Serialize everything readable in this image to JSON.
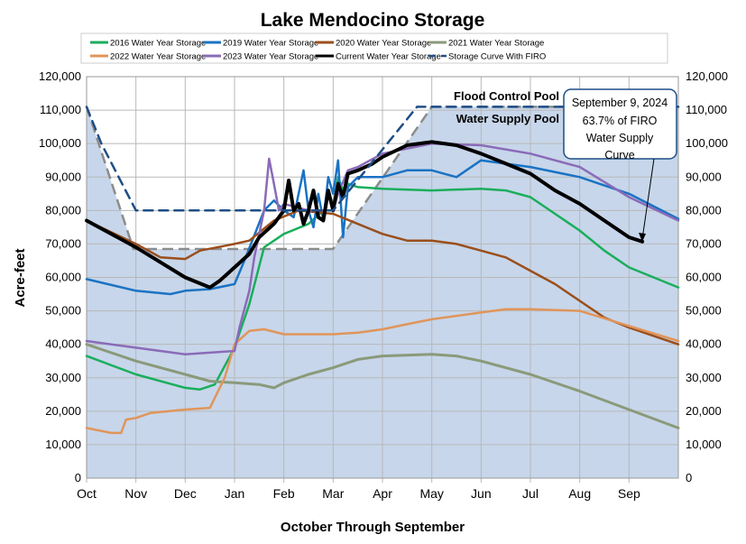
{
  "chart_data": {
    "type": "line",
    "title": "Lake Mendocino Storage",
    "xlabel": "October Through September",
    "ylabel": "Acre-feet",
    "ylim": [
      0,
      120000
    ],
    "xlim_months": [
      0,
      12
    ],
    "x_ticks": [
      "Oct",
      "Nov",
      "Dec",
      "Jan",
      "Feb",
      "Mar",
      "Apr",
      "May",
      "Jun",
      "Jul",
      "Aug",
      "Sep"
    ],
    "y_ticks": [
      0,
      10000,
      20000,
      30000,
      40000,
      50000,
      60000,
      70000,
      80000,
      90000,
      100000,
      110000,
      120000
    ],
    "y_tick_labels": [
      "0",
      "10,000",
      "20,000",
      "30,000",
      "40,000",
      "50,000",
      "60,000",
      "70,000",
      "80,000",
      "90,000",
      "100,000",
      "110,000",
      "120,000"
    ],
    "grid": true,
    "legend_position": "top",
    "x_unit": "months since Oct 1",
    "series": [
      {
        "name": "2016 Water Year Storage",
        "color": "#1aae5c",
        "width": 2.5,
        "points": [
          [
            0,
            36.5
          ],
          [
            1,
            31
          ],
          [
            2,
            27
          ],
          [
            2.3,
            26.5
          ],
          [
            2.6,
            28
          ],
          [
            3,
            39
          ],
          [
            3.3,
            52
          ],
          [
            3.6,
            69
          ],
          [
            4,
            73
          ],
          [
            4.5,
            76
          ],
          [
            4.8,
            80
          ],
          [
            5,
            80
          ],
          [
            5.1,
            90
          ],
          [
            5.2,
            86
          ],
          [
            5.3,
            88
          ],
          [
            5.5,
            87
          ],
          [
            6,
            86.5
          ],
          [
            7,
            86
          ],
          [
            8,
            86.5
          ],
          [
            8.5,
            86
          ],
          [
            9,
            84
          ],
          [
            9.5,
            79
          ],
          [
            10,
            74
          ],
          [
            10.5,
            68
          ],
          [
            11,
            63
          ],
          [
            12,
            57
          ]
        ]
      },
      {
        "name": "2019 Water Year Storage",
        "color": "#1a73c4",
        "width": 2.5,
        "points": [
          [
            0,
            59.5
          ],
          [
            1,
            56
          ],
          [
            1.7,
            55
          ],
          [
            2,
            56
          ],
          [
            2.5,
            56.5
          ],
          [
            3,
            58
          ],
          [
            3.2,
            65
          ],
          [
            3.6,
            80
          ],
          [
            3.8,
            83
          ],
          [
            4,
            80
          ],
          [
            4.2,
            78
          ],
          [
            4.4,
            92
          ],
          [
            4.5,
            80
          ],
          [
            4.6,
            75
          ],
          [
            4.7,
            85
          ],
          [
            4.8,
            77
          ],
          [
            4.9,
            90
          ],
          [
            5,
            85
          ],
          [
            5.1,
            95
          ],
          [
            5.2,
            72
          ],
          [
            5.3,
            87
          ],
          [
            5.5,
            90
          ],
          [
            6,
            90
          ],
          [
            6.5,
            92
          ],
          [
            7,
            92
          ],
          [
            7.5,
            90
          ],
          [
            8,
            95
          ],
          [
            9,
            93
          ],
          [
            10,
            90
          ],
          [
            11,
            85
          ],
          [
            12,
            77.5
          ]
        ]
      },
      {
        "name": "2020 Water Year Storage",
        "color": "#9a4f1c",
        "width": 2.5,
        "points": [
          [
            0,
            77
          ],
          [
            1,
            70
          ],
          [
            1.5,
            66
          ],
          [
            2,
            65.5
          ],
          [
            2.3,
            68
          ],
          [
            3,
            70
          ],
          [
            3.3,
            71
          ],
          [
            3.8,
            77
          ],
          [
            4.3,
            80
          ],
          [
            5,
            79
          ],
          [
            5.5,
            76
          ],
          [
            6,
            73
          ],
          [
            6.5,
            71
          ],
          [
            7,
            71
          ],
          [
            7.5,
            70
          ],
          [
            8,
            68
          ],
          [
            8.5,
            66
          ],
          [
            9,
            62
          ],
          [
            9.5,
            58
          ],
          [
            10,
            53
          ],
          [
            10.5,
            48
          ],
          [
            11,
            45
          ],
          [
            12,
            40
          ]
        ]
      },
      {
        "name": "2021 Water Year Storage",
        "color": "#8a9a7a",
        "width": 3,
        "points": [
          [
            0,
            40
          ],
          [
            1,
            35
          ],
          [
            2,
            31
          ],
          [
            2.5,
            29
          ],
          [
            3,
            28.5
          ],
          [
            3.5,
            28
          ],
          [
            3.8,
            27
          ],
          [
            4,
            28.5
          ],
          [
            4.5,
            31
          ],
          [
            5,
            33
          ],
          [
            5.5,
            35.5
          ],
          [
            6,
            36.5
          ],
          [
            7,
            37
          ],
          [
            7.5,
            36.5
          ],
          [
            8,
            35
          ],
          [
            9,
            31
          ],
          [
            10,
            26
          ],
          [
            11,
            20.5
          ],
          [
            12,
            15
          ]
        ]
      },
      {
        "name": "2022 Water Year Storage",
        "color": "#e0955a",
        "width": 2.5,
        "points": [
          [
            0,
            15
          ],
          [
            0.5,
            13.5
          ],
          [
            0.7,
            13.5
          ],
          [
            0.8,
            17.5
          ],
          [
            1,
            18
          ],
          [
            1.3,
            19.5
          ],
          [
            2,
            20.5
          ],
          [
            2.5,
            21
          ],
          [
            2.8,
            30
          ],
          [
            3,
            40
          ],
          [
            3.3,
            44
          ],
          [
            3.6,
            44.5
          ],
          [
            4,
            43
          ],
          [
            5,
            43
          ],
          [
            5.5,
            43.5
          ],
          [
            6,
            44.5
          ],
          [
            6.5,
            46
          ],
          [
            7,
            47.5
          ],
          [
            8,
            49.5
          ],
          [
            8.5,
            50.5
          ],
          [
            9,
            50.5
          ],
          [
            10,
            50
          ],
          [
            11,
            45.5
          ],
          [
            12,
            41
          ]
        ]
      },
      {
        "name": "2023 Water Year Storage",
        "color": "#8a6bb8",
        "width": 2.5,
        "points": [
          [
            0,
            41
          ],
          [
            1,
            39
          ],
          [
            2,
            37
          ],
          [
            2.5,
            37.5
          ],
          [
            3,
            38
          ],
          [
            3.1,
            45
          ],
          [
            3.3,
            56
          ],
          [
            3.4,
            66
          ],
          [
            3.6,
            80
          ],
          [
            3.7,
            95.5
          ],
          [
            3.8,
            88
          ],
          [
            3.9,
            80
          ],
          [
            4,
            82
          ],
          [
            4.5,
            80
          ],
          [
            5,
            80
          ],
          [
            5.1,
            85
          ],
          [
            5.3,
            92
          ],
          [
            5.5,
            93
          ],
          [
            6,
            97
          ],
          [
            7,
            100
          ],
          [
            8,
            99.5
          ],
          [
            9,
            97
          ],
          [
            10,
            93
          ],
          [
            11,
            84
          ],
          [
            12,
            77
          ]
        ]
      },
      {
        "name": "Current Water Year Storage",
        "color": "#000000",
        "width": 4,
        "points": [
          [
            0,
            77
          ],
          [
            1,
            69
          ],
          [
            2,
            60
          ],
          [
            2.5,
            57
          ],
          [
            2.7,
            59
          ],
          [
            3,
            63
          ],
          [
            3.3,
            67
          ],
          [
            3.5,
            72
          ],
          [
            3.8,
            76
          ],
          [
            4,
            80
          ],
          [
            4.1,
            89
          ],
          [
            4.2,
            80
          ],
          [
            4.3,
            82
          ],
          [
            4.4,
            76
          ],
          [
            4.5,
            80
          ],
          [
            4.6,
            86
          ],
          [
            4.7,
            78
          ],
          [
            4.8,
            77
          ],
          [
            4.9,
            86
          ],
          [
            5,
            80
          ],
          [
            5.1,
            88
          ],
          [
            5.2,
            84
          ],
          [
            5.3,
            91
          ],
          [
            5.5,
            92
          ],
          [
            5.8,
            94
          ],
          [
            6,
            96
          ],
          [
            6.5,
            99.5
          ],
          [
            7,
            100.5
          ],
          [
            7.5,
            99.5
          ],
          [
            8,
            97
          ],
          [
            8.5,
            94
          ],
          [
            9,
            91
          ],
          [
            9.5,
            86
          ],
          [
            10,
            82
          ],
          [
            10.5,
            77
          ],
          [
            11,
            72
          ],
          [
            11.27,
            70.7
          ]
        ]
      },
      {
        "name": "Storage Curve With FIRO",
        "color": "#1f4e85",
        "width": 2.5,
        "dashed": true,
        "points": [
          [
            0,
            111
          ],
          [
            0.3,
            100
          ],
          [
            1,
            80
          ],
          [
            5,
            80
          ],
          [
            6.7,
            111
          ],
          [
            12,
            111
          ]
        ]
      }
    ],
    "water_supply_curve": {
      "color": "#8c8c8c",
      "points": [
        [
          0,
          111
        ],
        [
          0.95,
          68.5
        ],
        [
          5,
          68.5
        ],
        [
          7,
          111
        ],
        [
          12,
          111
        ]
      ]
    },
    "value_unit": "thousand acre-feet",
    "annotations": {
      "flood_pool": "Flood Control Pool",
      "supply_pool": "Water Supply Pool",
      "callout": [
        "September 9, 2024",
        "63.7% of FIRO",
        "Water Supply",
        "Curve"
      ]
    },
    "area_color": "#c7d6ea"
  }
}
